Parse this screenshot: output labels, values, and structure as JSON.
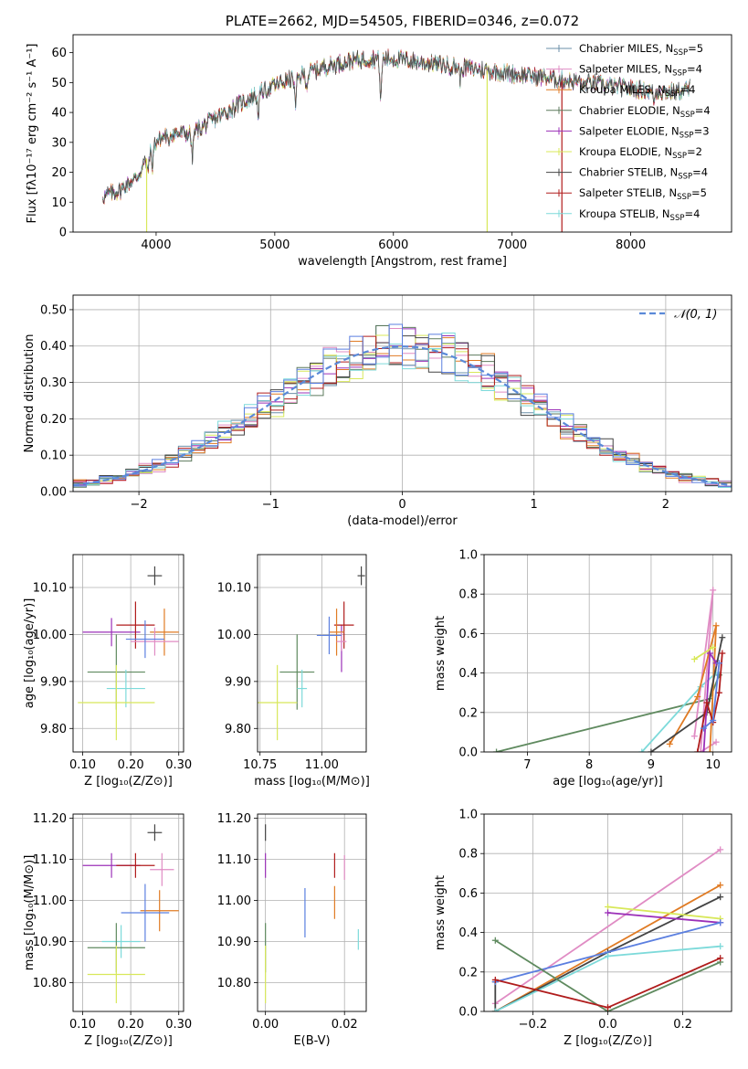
{
  "colors": {
    "Chabrier MILES": "#6b8fa8",
    "Salpeter MILES": "#e08cc4",
    "Kroupa MILES": "#e07b24",
    "Chabrier ELODIE": "#5d7a5d",
    "Salpeter ELODIE": "#9b30b8",
    "Kroupa ELODIE": "#d8e85a",
    "Chabrier STELIB": "#444444",
    "Salpeter STELIB": "#b01c1c",
    "Kroupa STELIB": "#7ddada",
    "extra_green": "#5f8a5f",
    "extra_blue": "#5b7fe0"
  },
  "chart_data": [
    {
      "id": "spectrum",
      "type": "line",
      "title": "PLATE=2662, MJD=54505, FIBERID=0346, z=0.072",
      "xlabel": "wavelength [Angstrom, rest frame]",
      "ylabel": "Flux [fλ10⁻¹⁷ erg cm⁻² s⁻¹ A⁻¹]",
      "xlim": [
        3300,
        8850
      ],
      "ylim": [
        0,
        66
      ],
      "xticks": [
        4000,
        5000,
        6000,
        7000,
        8000
      ],
      "yticks": [
        0,
        10,
        20,
        30,
        40,
        50,
        60
      ],
      "legend_position": "top-right",
      "legend": [
        {
          "label": "Chabrier MILES, N",
          "sub": "SSP",
          "tail": "=5",
          "key": "Chabrier MILES"
        },
        {
          "label": "Salpeter MILES, N",
          "sub": "SSP",
          "tail": "=4",
          "key": "Salpeter MILES"
        },
        {
          "label": "Kroupa MILES, N",
          "sub": "SSP",
          "tail": "=4",
          "key": "Kroupa MILES"
        },
        {
          "label": "Chabrier ELODIE, N",
          "sub": "SSP",
          "tail": "=4",
          "key": "Chabrier ELODIE"
        },
        {
          "label": "Salpeter ELODIE, N",
          "sub": "SSP",
          "tail": "=3",
          "key": "Salpeter ELODIE"
        },
        {
          "label": "Kroupa ELODIE, N",
          "sub": "SSP",
          "tail": "=2",
          "key": "Kroupa ELODIE"
        },
        {
          "label": "Chabrier STELIB, N",
          "sub": "SSP",
          "tail": "=4",
          "key": "Chabrier STELIB"
        },
        {
          "label": "Salpeter STELIB, N",
          "sub": "SSP",
          "tail": "=5",
          "key": "Salpeter STELIB"
        },
        {
          "label": "Kroupa STELIB, N",
          "sub": "SSP",
          "tail": "=4",
          "key": "Kroupa STELIB"
        }
      ],
      "continuum": [
        [
          3550,
          12
        ],
        [
          3700,
          14
        ],
        [
          3850,
          19
        ],
        [
          3950,
          27
        ],
        [
          4000,
          30
        ],
        [
          4100,
          33
        ],
        [
          4300,
          33
        ],
        [
          4500,
          38
        ],
        [
          4800,
          45
        ],
        [
          5000,
          49
        ],
        [
          5200,
          52
        ],
        [
          5400,
          55
        ],
        [
          5600,
          57
        ],
        [
          5800,
          58
        ],
        [
          6000,
          58
        ],
        [
          6200,
          57
        ],
        [
          6400,
          56
        ],
        [
          6600,
          55
        ],
        [
          6800,
          54
        ],
        [
          7000,
          53
        ],
        [
          7200,
          52
        ],
        [
          7400,
          51
        ],
        [
          7600,
          50
        ],
        [
          7800,
          49
        ],
        [
          8000,
          48
        ],
        [
          8200,
          47
        ],
        [
          8400,
          47
        ],
        [
          8500,
          48
        ]
      ],
      "dips": [
        [
          3930,
          6
        ],
        [
          3968,
          6
        ],
        [
          4102,
          4
        ],
        [
          4305,
          8
        ],
        [
          4861,
          6
        ],
        [
          5175,
          10
        ],
        [
          5270,
          4
        ],
        [
          5893,
          14
        ],
        [
          6563,
          4
        ],
        [
          7600,
          2
        ],
        [
          8200,
          3
        ]
      ],
      "drops": [
        {
          "x": 3920,
          "key": "Kroupa ELODIE"
        },
        {
          "x": 6790,
          "key": "Kroupa ELODIE"
        },
        {
          "x": 7420,
          "key": "Salpeter STELIB"
        }
      ]
    },
    {
      "id": "residuals",
      "type": "histogram",
      "xlabel": "(data-model)/error",
      "ylabel": "Normed distribution",
      "xlim": [
        -2.5,
        2.5
      ],
      "ylim": [
        0,
        0.54
      ],
      "xticks": [
        -2,
        -1,
        0,
        1,
        2
      ],
      "yticks": [
        0.0,
        0.1,
        0.2,
        0.3,
        0.4,
        0.5
      ],
      "grid": true,
      "bin_width": 0.1,
      "legend_position": "top-right",
      "legend": "𝒩(0, 1)",
      "reference_line": "normal(0,1)"
    },
    {
      "id": "age-vs-Z",
      "type": "errorbar",
      "xlabel": "Z [log₁₀(Z/Z⊙)]",
      "ylabel": "age  [log₁₀(age/yr)]",
      "xlim": [
        0.08,
        0.31
      ],
      "ylim": [
        9.75,
        10.17
      ],
      "xticks": [
        0.1,
        0.2,
        0.3
      ],
      "yticks": [
        9.8,
        9.9,
        10.0,
        10.1
      ],
      "grid": true,
      "points": [
        {
          "key": "Chabrier STELIB",
          "x": 0.25,
          "y": 10.125,
          "xe": 0.015,
          "ye": 0.02
        },
        {
          "key": "Salpeter ELODIE",
          "x": 0.16,
          "y": 10.005,
          "xe": 0.06,
          "ye": 0.03
        },
        {
          "key": "Salpeter STELIB",
          "x": 0.21,
          "y": 10.02,
          "xe": 0.04,
          "ye": 0.05
        },
        {
          "key": "Kroupa MILES",
          "x": 0.27,
          "y": 10.005,
          "xe": 0.03,
          "ye": 0.05
        },
        {
          "key": "Salpeter MILES",
          "x": 0.25,
          "y": 9.985,
          "xe": 0.05,
          "ye": 0.03
        },
        {
          "key": "extra_blue",
          "x": 0.23,
          "y": 9.99,
          "xe": 0.04,
          "ye": 0.04
        },
        {
          "key": "extra_green",
          "x": 0.17,
          "y": 9.92,
          "xe": 0.06,
          "ye": 0.08
        },
        {
          "key": "Kroupa STELIB",
          "x": 0.19,
          "y": 9.885,
          "xe": 0.04,
          "ye": 0.04
        },
        {
          "key": "Kroupa ELODIE",
          "x": 0.17,
          "y": 9.855,
          "xe": 0.08,
          "ye": 0.08
        }
      ]
    },
    {
      "id": "age-vs-mass",
      "type": "errorbar",
      "xlabel": "mass [log₁₀(M/M⊙)]",
      "ylabel": "",
      "xlim": [
        10.74,
        11.18
      ],
      "ylim": [
        9.75,
        10.17
      ],
      "xticks": [
        10.75,
        11.0
      ],
      "yticks": [
        9.8,
        9.9,
        10.0,
        10.1
      ],
      "grid": true,
      "points": [
        {
          "key": "Chabrier STELIB",
          "x": 11.16,
          "y": 10.125,
          "xe": 0.015,
          "ye": 0.02
        },
        {
          "key": "Salpeter ELODIE",
          "x": 11.08,
          "y": 9.97,
          "xe": 0.0,
          "ye": 0.05
        },
        {
          "key": "Salpeter STELIB",
          "x": 11.09,
          "y": 10.02,
          "xe": 0.04,
          "ye": 0.05
        },
        {
          "key": "Kroupa MILES",
          "x": 11.06,
          "y": 10.005,
          "xe": 0.03,
          "ye": 0.05
        },
        {
          "key": "Salpeter MILES",
          "x": 11.08,
          "y": 9.985,
          "xe": 0.02,
          "ye": 0.02
        },
        {
          "key": "extra_blue",
          "x": 11.03,
          "y": 9.998,
          "xe": 0.05,
          "ye": 0.04
        },
        {
          "key": "extra_green",
          "x": 10.9,
          "y": 9.92,
          "xe": 0.07,
          "ye": 0.08
        },
        {
          "key": "Kroupa STELIB",
          "x": 10.92,
          "y": 9.885,
          "xe": 0.02,
          "ye": 0.04
        },
        {
          "key": "Kroupa ELODIE",
          "x": 10.82,
          "y": 9.855,
          "xe": 0.08,
          "ye": 0.08
        }
      ]
    },
    {
      "id": "massweight-vs-age",
      "type": "line",
      "xlabel": "age  [log₁₀(age/yr)]",
      "ylabel": "mass weight",
      "xlim": [
        6.3,
        10.3
      ],
      "ylim": [
        0,
        1
      ],
      "xticks": [
        7,
        8,
        9,
        10
      ],
      "yticks": [
        0.0,
        0.2,
        0.4,
        0.6,
        0.8,
        1.0
      ],
      "grid": true,
      "series": [
        {
          "key": "extra_green",
          "x": [
            6.5,
            9.95,
            10.1
          ],
          "y": [
            0.0,
            0.27,
            0.39
          ]
        },
        {
          "key": "Kroupa STELIB",
          "x": [
            8.85,
            9.8,
            10.05
          ],
          "y": [
            0.0,
            0.33,
            0.4
          ]
        },
        {
          "key": "Salpeter MILES",
          "x": [
            9.7,
            10.0,
            9.8,
            10.05
          ],
          "y": [
            0.08,
            0.82,
            0.0,
            0.05
          ]
        },
        {
          "key": "Kroupa MILES",
          "x": [
            9.3,
            9.75,
            10.05,
            9.95
          ],
          "y": [
            0.04,
            0.28,
            0.64,
            0.0
          ]
        },
        {
          "key": "Chabrier STELIB",
          "x": [
            9.0,
            9.9,
            10.15
          ],
          "y": [
            0.0,
            0.2,
            0.58
          ]
        },
        {
          "key": "Salpeter ELODIE",
          "x": [
            9.85,
            9.95,
            10.05
          ],
          "y": [
            0.0,
            0.5,
            0.45
          ]
        },
        {
          "key": "Kroupa ELODIE",
          "x": [
            9.7,
            10.0
          ],
          "y": [
            0.47,
            0.53
          ]
        },
        {
          "key": "Salpeter STELIB",
          "x": [
            9.75,
            9.9,
            10.0,
            10.1,
            10.15
          ],
          "y": [
            0.0,
            0.25,
            0.15,
            0.3,
            0.5
          ]
        },
        {
          "key": "extra_blue",
          "x": [
            9.85,
            10.0,
            10.1
          ],
          "y": [
            0.12,
            0.16,
            0.45
          ]
        }
      ]
    },
    {
      "id": "mass-vs-Z",
      "type": "errorbar",
      "xlabel": "Z [log₁₀(Z/Z⊙)]",
      "ylabel": "mass [log₁₀(M/M⊙)]",
      "xlim": [
        0.08,
        0.31
      ],
      "ylim": [
        10.73,
        11.21
      ],
      "xticks": [
        0.1,
        0.2,
        0.3
      ],
      "yticks": [
        10.8,
        10.9,
        11.0,
        11.1,
        11.2
      ],
      "grid": true,
      "points": [
        {
          "key": "Chabrier STELIB",
          "x": 0.25,
          "y": 11.165,
          "xe": 0.015,
          "ye": 0.02
        },
        {
          "key": "Salpeter ELODIE",
          "x": 0.16,
          "y": 11.085,
          "xe": 0.06,
          "ye": 0.03
        },
        {
          "key": "Salpeter STELIB",
          "x": 0.21,
          "y": 11.085,
          "xe": 0.04,
          "ye": 0.03
        },
        {
          "key": "Salpeter MILES",
          "x": 0.265,
          "y": 11.075,
          "xe": 0.025,
          "ye": 0.04
        },
        {
          "key": "Kroupa MILES",
          "x": 0.26,
          "y": 10.975,
          "xe": 0.04,
          "ye": 0.05
        },
        {
          "key": "extra_blue",
          "x": 0.23,
          "y": 10.97,
          "xe": 0.05,
          "ye": 0.07
        },
        {
          "key": "Kroupa STELIB",
          "x": 0.18,
          "y": 10.9,
          "xe": 0.04,
          "ye": 0.04
        },
        {
          "key": "extra_green",
          "x": 0.17,
          "y": 10.885,
          "xe": 0.06,
          "ye": 0.06
        },
        {
          "key": "Kroupa ELODIE",
          "x": 0.17,
          "y": 10.82,
          "xe": 0.06,
          "ye": 0.07
        }
      ]
    },
    {
      "id": "mass-vs-EBV",
      "type": "errorbar",
      "xlabel": "E(B-V)",
      "ylabel": "",
      "xlim": [
        -0.002,
        0.0255
      ],
      "ylim": [
        10.73,
        11.21
      ],
      "xticks": [
        0.0,
        0.02
      ],
      "yticks": [
        10.8,
        10.9,
        11.0,
        11.1,
        11.2
      ],
      "grid": true,
      "points": [
        {
          "key": "Chabrier STELIB",
          "x": 0.0,
          "y": 11.165,
          "xe": 0.0,
          "ye": 0.02
        },
        {
          "key": "Salpeter ELODIE",
          "x": 0.0,
          "y": 11.085,
          "xe": 0.0,
          "ye": 0.03
        },
        {
          "key": "extra_green",
          "x": 0.0,
          "y": 10.885,
          "xe": 0.0,
          "ye": 0.06
        },
        {
          "key": "Kroupa ELODIE",
          "x": 0.0,
          "y": 10.82,
          "xe": 0.0,
          "ye": 0.07
        },
        {
          "key": "extra_blue",
          "x": 0.01,
          "y": 10.97,
          "xe": 0.0,
          "ye": 0.06
        },
        {
          "key": "Salpeter STELIB",
          "x": 0.0175,
          "y": 11.085,
          "xe": 0.0,
          "ye": 0.03
        },
        {
          "key": "Kroupa MILES",
          "x": 0.0175,
          "y": 10.995,
          "xe": 0.0,
          "ye": 0.04
        },
        {
          "key": "Salpeter MILES",
          "x": 0.02,
          "y": 11.08,
          "xe": 0.0,
          "ye": 0.03
        },
        {
          "key": "Kroupa STELIB",
          "x": 0.0235,
          "y": 10.905,
          "xe": 0.0,
          "ye": 0.025
        }
      ]
    },
    {
      "id": "massweight-vs-Z",
      "type": "line",
      "xlabel": "Z [log₁₀(Z/Z⊙)]",
      "ylabel": "mass weight",
      "xlim": [
        -0.33,
        0.33
      ],
      "ylim": [
        0,
        1
      ],
      "xticks": [
        -0.2,
        0.0,
        0.2
      ],
      "yticks": [
        0.0,
        0.2,
        0.4,
        0.6,
        0.8,
        1.0
      ],
      "grid": true,
      "series": [
        {
          "key": "Salpeter MILES",
          "x": [
            -0.3,
            0.3
          ],
          "y": [
            0.04,
            0.82
          ]
        },
        {
          "key": "Kroupa MILES",
          "x": [
            -0.3,
            0.3
          ],
          "y": [
            0.0,
            0.64
          ]
        },
        {
          "key": "Chabrier STELIB",
          "x": [
            -0.3,
            -0.3,
            0.0,
            0.3
          ],
          "y": [
            0.15,
            0.0,
            0.3,
            0.58
          ]
        },
        {
          "key": "Kroupa ELODIE",
          "x": [
            0.0,
            0.3
          ],
          "y": [
            0.53,
            0.47
          ]
        },
        {
          "key": "Salpeter ELODIE",
          "x": [
            0.0,
            0.3
          ],
          "y": [
            0.5,
            0.45
          ]
        },
        {
          "key": "extra_blue",
          "x": [
            -0.3,
            0.3
          ],
          "y": [
            0.15,
            0.45
          ]
        },
        {
          "key": "Kroupa STELIB",
          "x": [
            -0.3,
            0.0,
            0.3
          ],
          "y": [
            0.0,
            0.28,
            0.33
          ]
        },
        {
          "key": "extra_green",
          "x": [
            -0.3,
            0.0,
            0.3
          ],
          "y": [
            0.36,
            0.0,
            0.25
          ]
        },
        {
          "key": "Salpeter STELIB",
          "x": [
            -0.3,
            0.0,
            0.3
          ],
          "y": [
            0.16,
            0.02,
            0.27
          ]
        }
      ]
    }
  ]
}
